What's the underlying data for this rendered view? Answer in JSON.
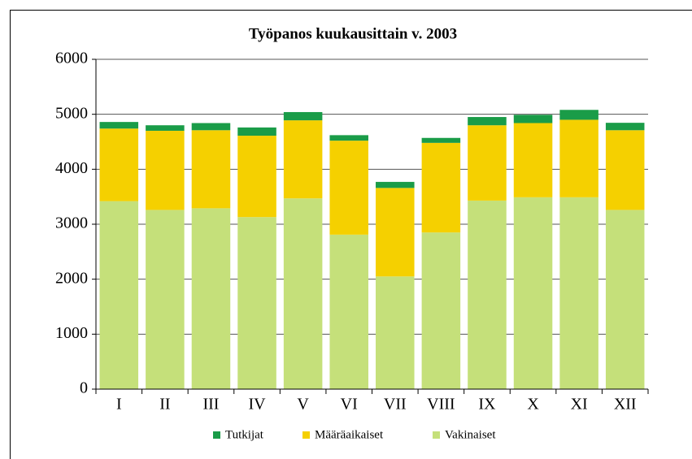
{
  "chart_data": {
    "type": "stacked_bar",
    "title": "Työpanos kuukausittain v. 2003",
    "categories": [
      "I",
      "II",
      "III",
      "IV",
      "V",
      "VI",
      "VII",
      "VIII",
      "IX",
      "X",
      "XI",
      "XII"
    ],
    "series": [
      {
        "name": "Vakinaiset",
        "color": "#c5e07a",
        "values": [
          3420,
          3260,
          3290,
          3130,
          3470,
          2810,
          2050,
          2850,
          3430,
          3490,
          3490,
          3260
        ]
      },
      {
        "name": "Määräaikaiset",
        "color": "#f5d000",
        "values": [
          1320,
          1440,
          1420,
          1480,
          1420,
          1710,
          1610,
          1630,
          1370,
          1350,
          1410,
          1450
        ]
      },
      {
        "name": "Tutkijat",
        "color": "#1a9c48",
        "values": [
          120,
          100,
          130,
          150,
          150,
          100,
          110,
          90,
          150,
          150,
          180,
          135
        ]
      }
    ],
    "ylim": [
      0,
      6000
    ],
    "yticks": [
      0,
      1000,
      2000,
      3000,
      4000,
      5000,
      6000
    ],
    "grid": true
  }
}
